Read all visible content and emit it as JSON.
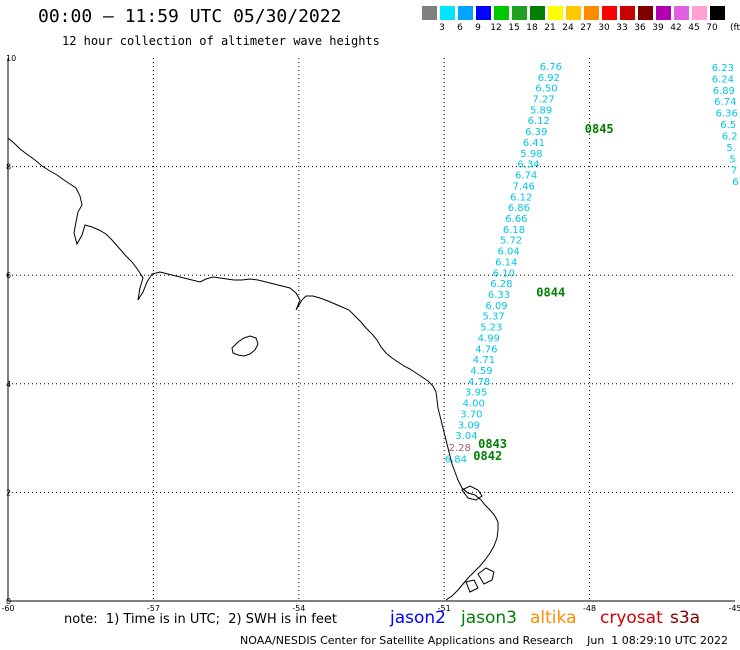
{
  "title": "00:00 – 11:59 UTC 05/30/2022",
  "subtitle": "12 hour collection of altimeter wave heights",
  "legend": {
    "unit": "(ft)",
    "labels": [
      "3",
      "6",
      "9",
      "12",
      "15",
      "18",
      "21",
      "24",
      "27",
      "30",
      "33",
      "36",
      "39",
      "42",
      "45",
      "70"
    ],
    "colors": [
      "#7f7f7f",
      "#00e5ff",
      "#00a5ff",
      "#0000ff",
      "#00c800",
      "#20a020",
      "#008000",
      "#ffff00",
      "#ffc800",
      "#ff8c00",
      "#ff0000",
      "#c80000",
      "#800000",
      "#b000b0",
      "#e060e0",
      "#ffa0d0",
      "#000000"
    ]
  },
  "map": {
    "x_ticks": [
      "-60",
      "-57",
      "-54",
      "-51",
      "-48",
      "-45"
    ],
    "y_ticks": [
      "0",
      "2",
      "4",
      "6",
      "8",
      "10"
    ],
    "x_range": [
      -60,
      -45
    ],
    "y_range": [
      0,
      10
    ]
  },
  "tracks": [
    {
      "color": "#00c8e6",
      "points": [
        {
          "lon": -48.8,
          "lat": 9.78,
          "v": "6.76"
        },
        {
          "lon": -48.84,
          "lat": 9.58,
          "v": "6.92"
        },
        {
          "lon": -48.89,
          "lat": 9.38,
          "v": "6.50"
        },
        {
          "lon": -48.95,
          "lat": 9.18,
          "v": "7.27"
        },
        {
          "lon": -49.0,
          "lat": 8.98,
          "v": "5.89"
        },
        {
          "lon": -49.05,
          "lat": 8.78,
          "v": "6.12"
        },
        {
          "lon": -49.1,
          "lat": 8.58,
          "v": "6.39"
        },
        {
          "lon": -49.15,
          "lat": 8.38,
          "v": "6.41"
        },
        {
          "lon": -49.2,
          "lat": 8.18,
          "v": "5.98"
        },
        {
          "lon": -49.26,
          "lat": 7.98,
          "v": "6.34"
        },
        {
          "lon": -49.31,
          "lat": 7.78,
          "v": "6.74"
        },
        {
          "lon": -49.36,
          "lat": 7.58,
          "v": "7.46"
        },
        {
          "lon": -49.41,
          "lat": 7.38,
          "v": "6.12"
        },
        {
          "lon": -49.46,
          "lat": 7.18,
          "v": "6.86"
        },
        {
          "lon": -49.51,
          "lat": 6.98,
          "v": "6.66"
        },
        {
          "lon": -49.56,
          "lat": 6.78,
          "v": "6.18"
        },
        {
          "lon": -49.62,
          "lat": 6.58,
          "v": "5.72"
        },
        {
          "lon": -49.67,
          "lat": 6.38,
          "v": "6.04"
        },
        {
          "lon": -49.72,
          "lat": 6.18,
          "v": "6.14"
        },
        {
          "lon": -49.77,
          "lat": 5.98,
          "v": "6.10"
        },
        {
          "lon": -49.82,
          "lat": 5.78,
          "v": "6.28"
        },
        {
          "lon": -49.87,
          "lat": 5.58,
          "v": "6.33"
        },
        {
          "lon": -49.92,
          "lat": 5.38,
          "v": "6.09"
        },
        {
          "lon": -49.98,
          "lat": 5.18,
          "v": "5.37"
        },
        {
          "lon": -50.03,
          "lat": 4.98,
          "v": "5.23"
        },
        {
          "lon": -50.08,
          "lat": 4.78,
          "v": "4.99"
        },
        {
          "lon": -50.13,
          "lat": 4.58,
          "v": "4.76"
        },
        {
          "lon": -50.18,
          "lat": 4.38,
          "v": "4.71"
        },
        {
          "lon": -50.23,
          "lat": 4.18,
          "v": "4.59"
        },
        {
          "lon": -50.28,
          "lat": 3.98,
          "v": "4.78"
        },
        {
          "lon": -50.34,
          "lat": 3.78,
          "v": "3.95"
        },
        {
          "lon": -50.39,
          "lat": 3.58,
          "v": "4.00"
        },
        {
          "lon": -50.44,
          "lat": 3.38,
          "v": "3.70"
        },
        {
          "lon": -50.49,
          "lat": 3.18,
          "v": "3.09"
        },
        {
          "lon": -50.54,
          "lat": 2.98,
          "v": "3.04"
        }
      ]
    },
    {
      "color": "#b06060",
      "points": [
        {
          "lon": -50.68,
          "lat": 2.76,
          "v": "2.28"
        }
      ]
    },
    {
      "color": "#00c8e6",
      "points": [
        {
          "lon": -50.76,
          "lat": 2.55,
          "v": "6.84"
        }
      ]
    },
    {
      "color": "#00c8e6",
      "points": [
        {
          "lon": -45.25,
          "lat": 9.76,
          "v": "6.23"
        },
        {
          "lon": -45.25,
          "lat": 9.55,
          "v": "6.24"
        },
        {
          "lon": -45.23,
          "lat": 9.34,
          "v": "6.89"
        },
        {
          "lon": -45.2,
          "lat": 9.13,
          "v": "6.74"
        },
        {
          "lon": -45.17,
          "lat": 8.92,
          "v": "6.36"
        },
        {
          "lon": -45.14,
          "lat": 8.71,
          "v": "6.5"
        },
        {
          "lon": -45.11,
          "lat": 8.5,
          "v": "6.2"
        },
        {
          "lon": -45.08,
          "lat": 8.29,
          "v": "5."
        },
        {
          "lon": -45.05,
          "lat": 8.08,
          "v": "5"
        },
        {
          "lon": -45.02,
          "lat": 7.87,
          "v": "7"
        },
        {
          "lon": -44.99,
          "lat": 7.66,
          "v": "6"
        }
      ]
    }
  ],
  "time_labels": [
    {
      "lon": -48.1,
      "lat": 8.62,
      "t": "0845",
      "color": "#008000"
    },
    {
      "lon": -49.1,
      "lat": 5.61,
      "t": "0844",
      "color": "#008000"
    },
    {
      "lon": -50.3,
      "lat": 2.82,
      "t": "0843",
      "color": "#008000"
    },
    {
      "lon": -50.4,
      "lat": 2.6,
      "t": "0842",
      "color": "#008000"
    }
  ],
  "note": "note:  1) Time is in UTC;  2) SWH is in feet",
  "satellites": [
    {
      "name": "jason2",
      "color": "#0000ff"
    },
    {
      "name": "jason3",
      "color": "#008000"
    },
    {
      "name": "altika",
      "color": "#ff8c00"
    },
    {
      "name": "cryosat",
      "color": "#d00000"
    },
    {
      "name": "s3a",
      "color": "#800000"
    }
  ],
  "credit": "NOAA/NESDIS Center for Satellite Applications and Research    Jun  1 08:29:10 UTC 2022"
}
